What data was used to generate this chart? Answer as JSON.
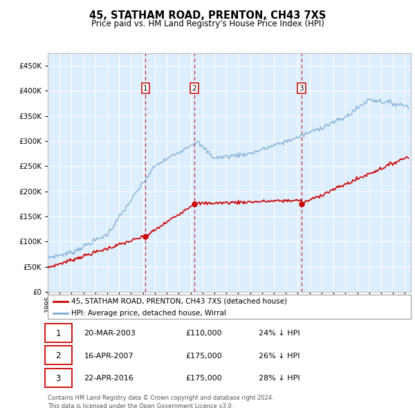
{
  "title": "45, STATHAM ROAD, PRENTON, CH43 7XS",
  "subtitle": "Price paid vs. HM Land Registry's House Price Index (HPI)",
  "legend_line1": "45, STATHAM ROAD, PRENTON, CH43 7XS (detached house)",
  "legend_line2": "HPI: Average price, detached house, Wirral",
  "transactions": [
    {
      "num": 1,
      "date": "20-MAR-2003",
      "price": "£110,000",
      "hpi": "24% ↓ HPI",
      "year": 2003.22
    },
    {
      "num": 2,
      "date": "16-APR-2007",
      "price": "£175,000",
      "hpi": "26% ↓ HPI",
      "year": 2007.3
    },
    {
      "num": 3,
      "date": "22-APR-2016",
      "price": "£175,000",
      "hpi": "28% ↓ HPI",
      "year": 2016.31
    }
  ],
  "footnote": "Contains HM Land Registry data © Crown copyright and database right 2024.\nThis data is licensed under the Open Government Licence v3.0.",
  "red_color": "#cc0000",
  "blue_color": "#7aabcc",
  "background_chart": "#ddeeff",
  "grid_color": "#ffffff",
  "ylim_max": 475000,
  "xlim_start": 1995.0,
  "xlim_end": 2025.5,
  "hpi_seed": 10,
  "prop_seed": 7
}
